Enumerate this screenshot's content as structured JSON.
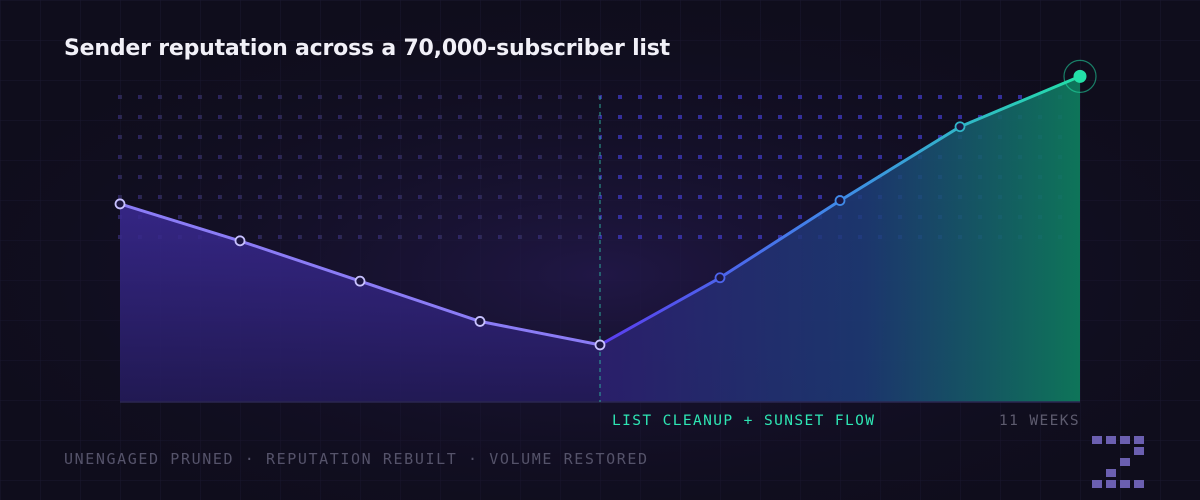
{
  "title": "Sender reputation across a 70,000-subscriber list",
  "annotation": "LIST CLEANUP + SUNSET FLOW",
  "duration_label": "11 WEEKS",
  "footer": "UNENGAGED PRUNED · REPUTATION REBUILT · VOLUME RESTORED",
  "logo": "Z",
  "colors": {
    "background": "#0f0d1c",
    "decline_line": "#8b7cf6",
    "recovery_start": "#5b3df0",
    "recovery_end": "#23e0a8",
    "annotation": "#2ee6b4"
  },
  "chart_data": {
    "type": "line",
    "x": [
      1,
      2,
      3,
      4,
      5,
      6,
      7,
      8,
      9
    ],
    "values": [
      59,
      48,
      36,
      24,
      17,
      37,
      60,
      82,
      97
    ],
    "ylim": [
      0,
      112
    ],
    "event_index": 4,
    "highlight_index": 8,
    "grid": false,
    "legend": "none"
  }
}
